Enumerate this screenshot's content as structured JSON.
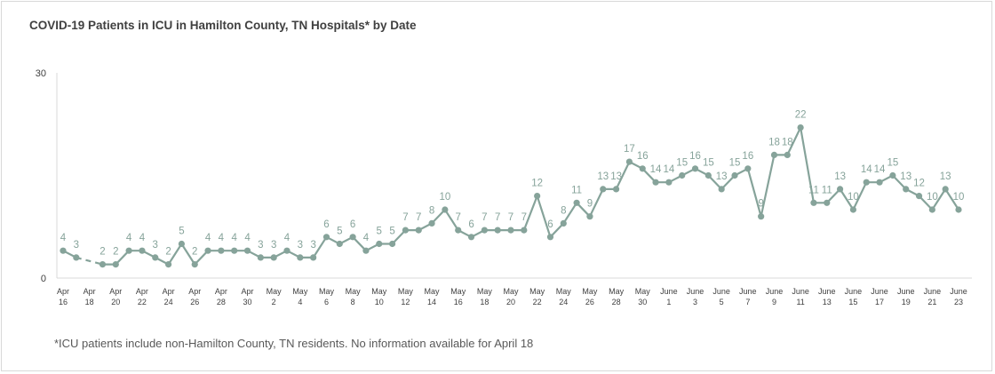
{
  "chart_data": {
    "type": "line",
    "title": "COVID-19  Patients in ICU in Hamilton County, TN Hospitals* by Date",
    "footnote": "*ICU patients include non-Hamilton County, TN residents. No information available for April 18",
    "xlabel": "",
    "ylabel": "",
    "ylim": [
      0,
      30
    ],
    "y_ticks": [
      "0",
      "30"
    ],
    "grid": false,
    "legend": "none",
    "color": "#86a39a",
    "series": [
      {
        "x": [
          "Apr 16",
          "Apr 17",
          "Apr 18",
          "Apr 19",
          "Apr 20",
          "Apr 21",
          "Apr 22",
          "Apr 23",
          "Apr 24",
          "Apr 25",
          "Apr 26",
          "Apr 27",
          "Apr 28",
          "Apr 29",
          "Apr 30",
          "May 1",
          "May 2",
          "May 3",
          "May 4",
          "May 5",
          "May 6",
          "May 7",
          "May 8",
          "May 9",
          "May 10",
          "May 11",
          "May 12",
          "May 13",
          "May 14",
          "May 15",
          "May 16",
          "May 17",
          "May 18",
          "May 19",
          "May 20",
          "May 21",
          "May 22",
          "May 23",
          "May 24",
          "May 25",
          "May 26",
          "May 27",
          "May 28",
          "May 29",
          "May 30",
          "May 31",
          "June 1",
          "June 2",
          "June 3",
          "June 4",
          "June 5",
          "June 6",
          "June 7",
          "June 8",
          "June 9",
          "June 10",
          "June 11",
          "June 12",
          "June 13",
          "June 14",
          "June 15",
          "June 16",
          "June 17",
          "June 18",
          "June 19",
          "June 20",
          "June 21",
          "June 22",
          "June 23"
        ],
        "values": [
          4,
          3,
          null,
          2,
          2,
          4,
          4,
          3,
          2,
          5,
          2,
          4,
          4,
          4,
          4,
          3,
          3,
          4,
          3,
          3,
          6,
          5,
          6,
          4,
          5,
          5,
          7,
          7,
          8,
          10,
          7,
          6,
          7,
          7,
          7,
          7,
          12,
          6,
          8,
          11,
          9,
          13,
          13,
          17,
          16,
          14,
          14,
          15,
          16,
          15,
          13,
          15,
          16,
          9,
          18,
          18,
          22,
          11,
          11,
          13,
          10,
          14,
          14,
          15,
          13,
          12,
          10,
          13,
          10
        ]
      }
    ],
    "x_tick_labels": [
      [
        "Apr",
        "16"
      ],
      [
        "Apr",
        "18"
      ],
      [
        "Apr",
        "20"
      ],
      [
        "Apr",
        "22"
      ],
      [
        "Apr",
        "24"
      ],
      [
        "Apr",
        "26"
      ],
      [
        "Apr",
        "28"
      ],
      [
        "Apr",
        "30"
      ],
      [
        "May",
        "2"
      ],
      [
        "May",
        "4"
      ],
      [
        "May",
        "6"
      ],
      [
        "May",
        "8"
      ],
      [
        "May",
        "10"
      ],
      [
        "May",
        "12"
      ],
      [
        "May",
        "14"
      ],
      [
        "May",
        "16"
      ],
      [
        "May",
        "18"
      ],
      [
        "May",
        "20"
      ],
      [
        "May",
        "22"
      ],
      [
        "May",
        "24"
      ],
      [
        "May",
        "26"
      ],
      [
        "May",
        "28"
      ],
      [
        "May",
        "30"
      ],
      [
        "June",
        "1"
      ],
      [
        "June",
        "3"
      ],
      [
        "June",
        "5"
      ],
      [
        "June",
        "7"
      ],
      [
        "June",
        "9"
      ],
      [
        "June",
        "11"
      ],
      [
        "June",
        "13"
      ],
      [
        "June",
        "15"
      ],
      [
        "June",
        "17"
      ],
      [
        "June",
        "19"
      ],
      [
        "June",
        "21"
      ],
      [
        "June",
        "23"
      ]
    ]
  }
}
